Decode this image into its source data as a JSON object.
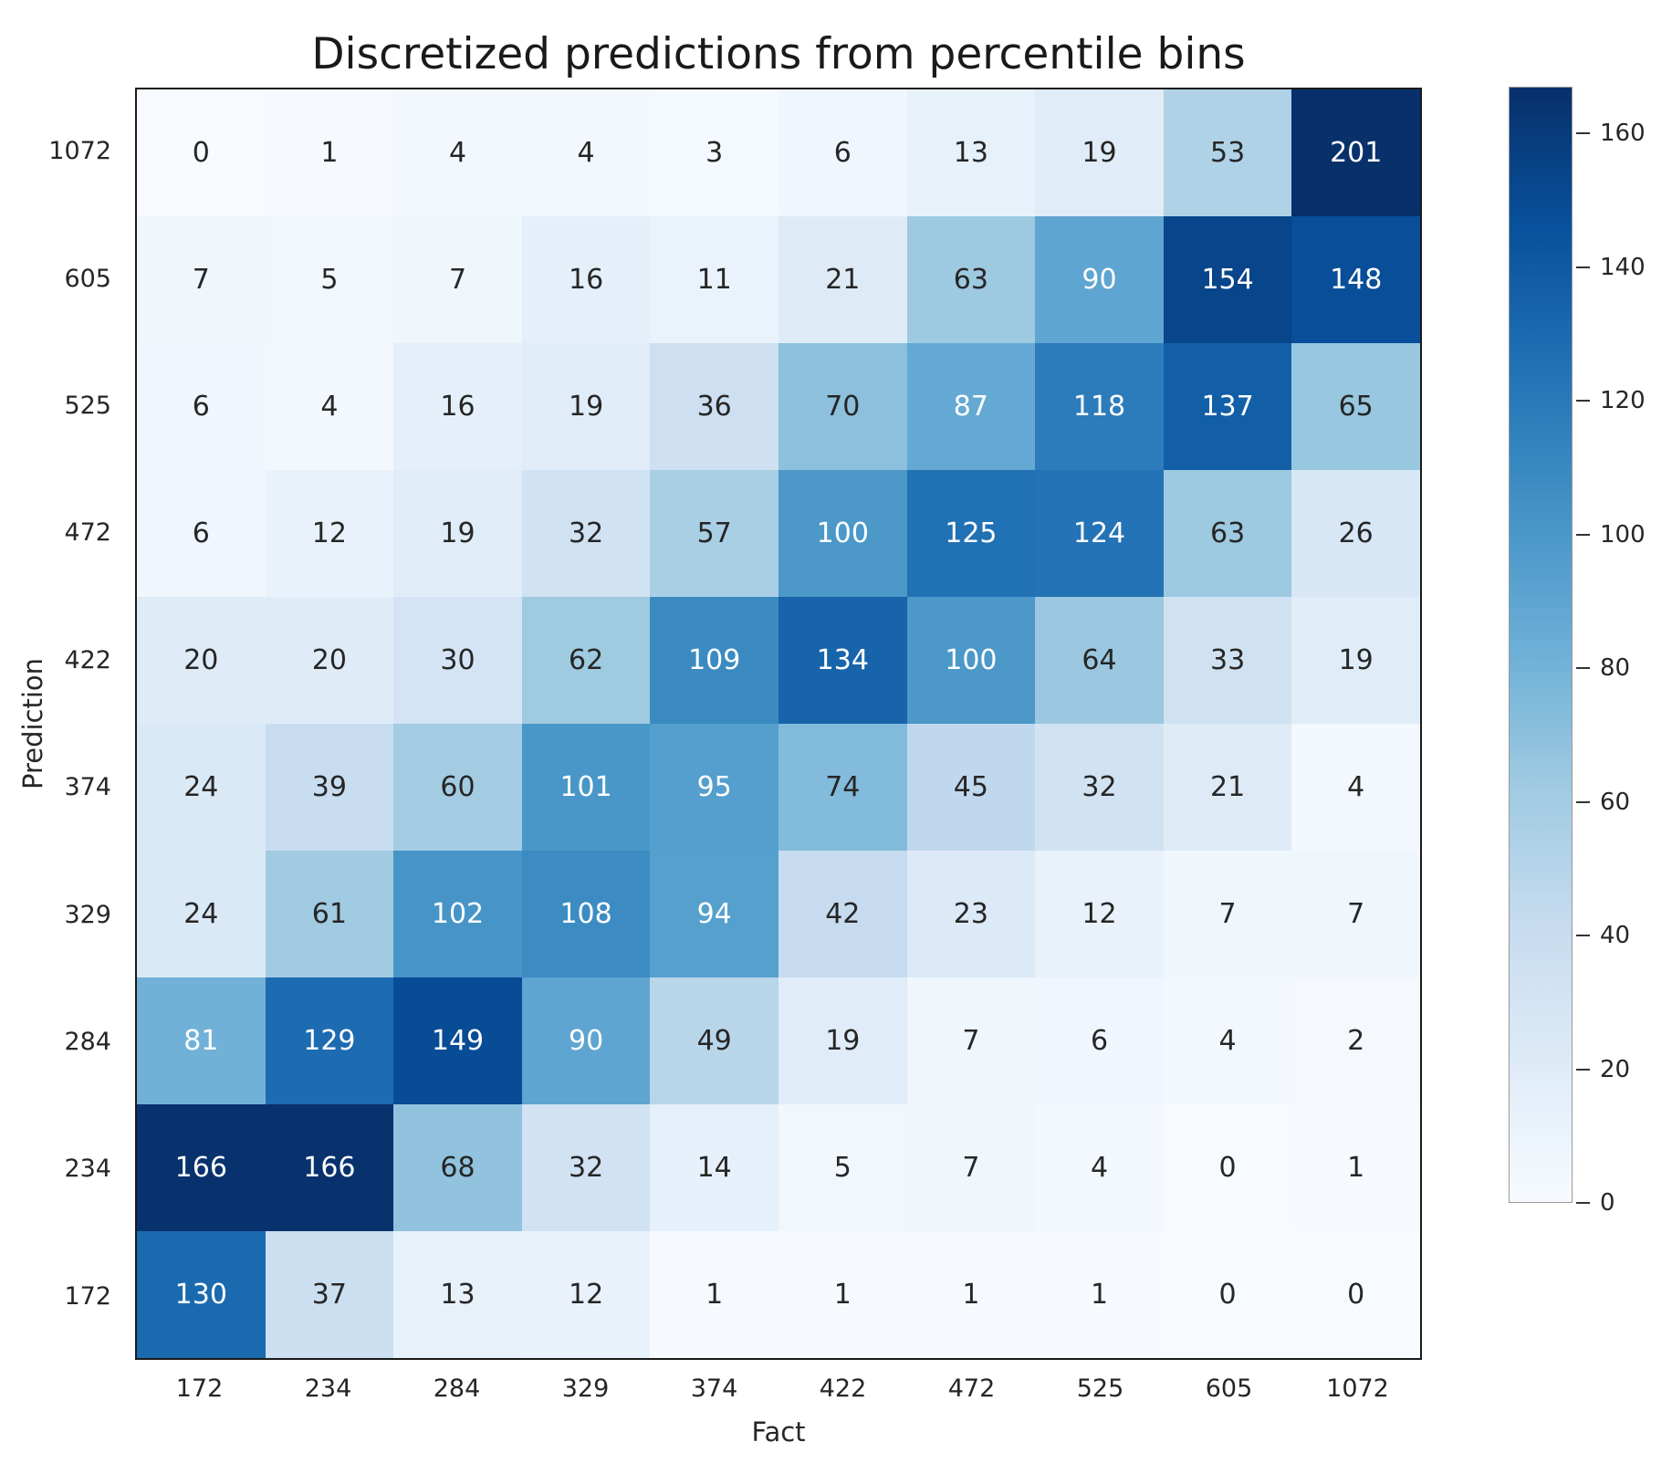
{
  "chart_data": {
    "type": "heatmap",
    "title": "Discretized predictions from percentile bins",
    "xlabel": "Fact",
    "ylabel": "Prediction",
    "x_tick_labels": [
      "172",
      "234",
      "284",
      "329",
      "374",
      "422",
      "472",
      "525",
      "605",
      "1072"
    ],
    "y_tick_labels": [
      "1072",
      "605",
      "525",
      "472",
      "422",
      "374",
      "329",
      "284",
      "234",
      "172"
    ],
    "matrix": [
      [
        0,
        1,
        4,
        4,
        3,
        6,
        13,
        19,
        53,
        201
      ],
      [
        7,
        5,
        7,
        16,
        11,
        21,
        63,
        90,
        154,
        148
      ],
      [
        6,
        4,
        16,
        19,
        36,
        70,
        87,
        118,
        137,
        65
      ],
      [
        6,
        12,
        19,
        32,
        57,
        100,
        125,
        124,
        63,
        26
      ],
      [
        20,
        20,
        30,
        62,
        109,
        134,
        100,
        64,
        33,
        19
      ],
      [
        24,
        39,
        60,
        101,
        95,
        74,
        45,
        32,
        21,
        4
      ],
      [
        24,
        61,
        102,
        108,
        94,
        42,
        23,
        12,
        7,
        7
      ],
      [
        81,
        129,
        149,
        90,
        49,
        19,
        7,
        6,
        4,
        2
      ],
      [
        166,
        166,
        68,
        32,
        14,
        5,
        7,
        4,
        0,
        1
      ],
      [
        130,
        37,
        13,
        12,
        1,
        1,
        1,
        1,
        0,
        0
      ]
    ],
    "colorbar": {
      "tick_values": [
        0,
        20,
        40,
        60,
        80,
        100,
        120,
        140,
        160
      ],
      "vmin": 0,
      "vmax": 167
    },
    "colormap": "Blues",
    "annotations_on": true,
    "grid": false,
    "legend_position": "colorbar-right"
  },
  "style": {
    "colormap_anchors": [
      "#f7fbff",
      "#deebf7",
      "#c6dbef",
      "#9ecae1",
      "#6baed6",
      "#4292c6",
      "#2171b5",
      "#08519c",
      "#08306b"
    ],
    "annotation_text_light": "#ffffff",
    "annotation_text_dark": "#262626",
    "axis_text_color": "#262626",
    "title_color": "#1a1a1a"
  }
}
